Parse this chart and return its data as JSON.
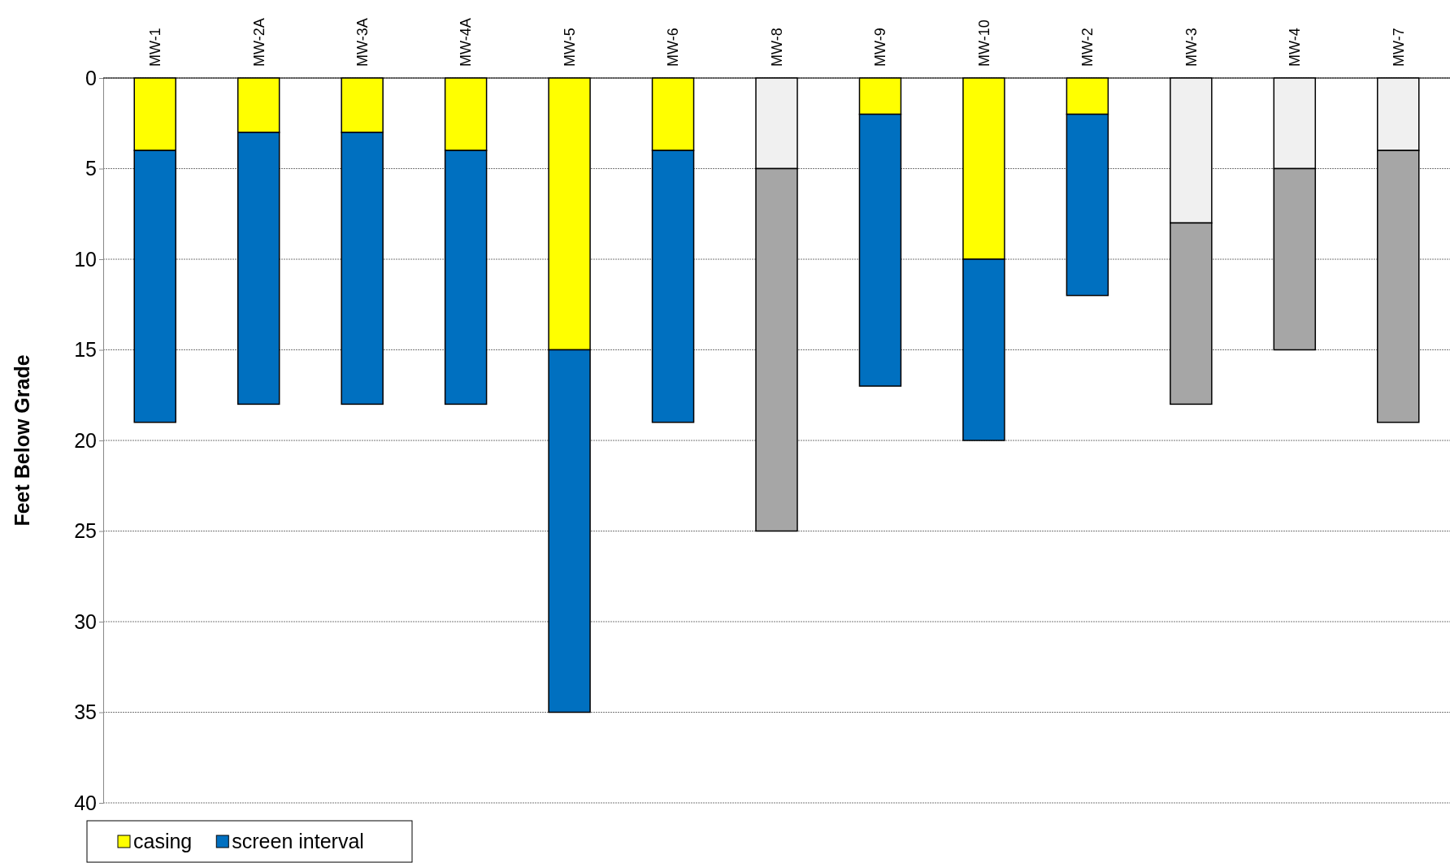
{
  "chart_data": {
    "type": "bar",
    "stacked": true,
    "ylabel": "Feet Below Grade",
    "categories": [
      "MW-1",
      "MW-2A",
      "MW-3A",
      "MW-4A",
      "MW-5",
      "MW-6",
      "MW-8",
      "MW-9",
      "MW-10",
      "MW-2",
      "MW-3",
      "MW-4",
      "MW-7"
    ],
    "series": [
      {
        "name": "casing",
        "color": "#ffff00",
        "values": [
          4,
          3,
          3,
          4,
          15,
          4,
          5,
          2,
          10,
          2,
          8,
          5,
          4
        ],
        "colors": [
          "#ffff00",
          "#ffff00",
          "#ffff00",
          "#ffff00",
          "#ffff00",
          "#ffff00",
          "#f0f0f0",
          "#ffff00",
          "#ffff00",
          "#ffff00",
          "#f0f0f0",
          "#f0f0f0",
          "#f0f0f0"
        ]
      },
      {
        "name": "screen interval",
        "color": "#0070c0",
        "values": [
          15,
          15,
          15,
          14,
          20,
          15,
          20,
          15,
          10,
          10,
          10,
          10,
          15
        ],
        "colors": [
          "#0070c0",
          "#0070c0",
          "#0070c0",
          "#0070c0",
          "#0070c0",
          "#0070c0",
          "#a6a6a6",
          "#0070c0",
          "#0070c0",
          "#0070c0",
          "#a6a6a6",
          "#a6a6a6",
          "#a6a6a6"
        ]
      }
    ],
    "ylim": [
      40,
      0
    ],
    "yticks": [
      0,
      5,
      10,
      15,
      20,
      25,
      30,
      35,
      40
    ],
    "grid": "y",
    "legend": "bottom left"
  }
}
